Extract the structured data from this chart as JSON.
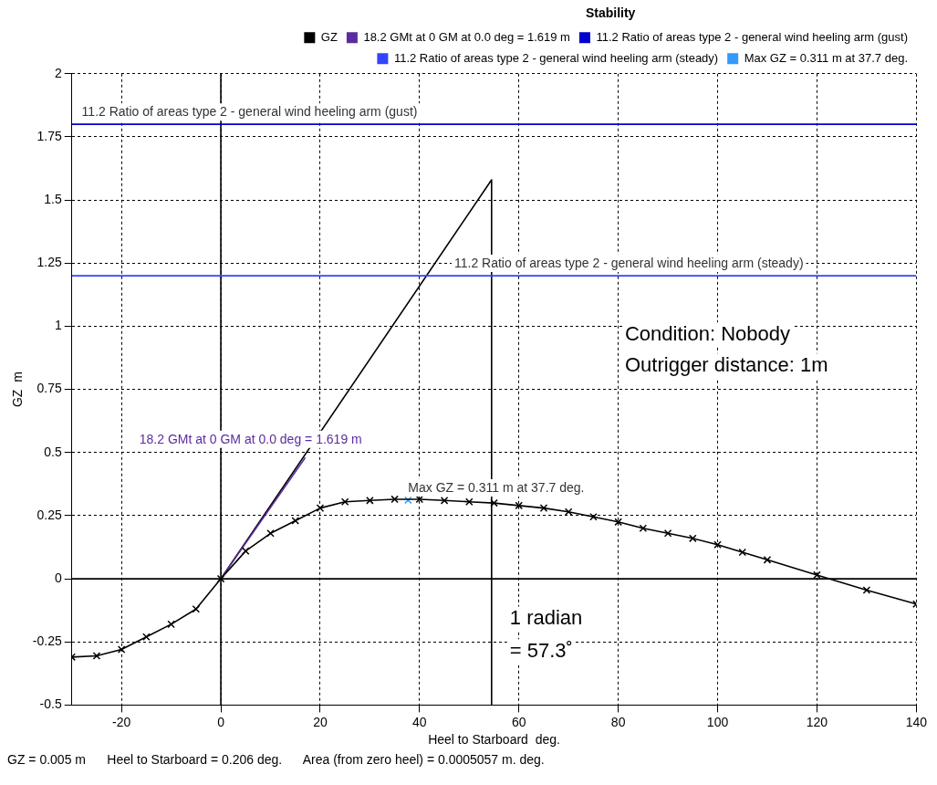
{
  "chart_data": {
    "type": "line",
    "xlabel": "Heel to Starboard  deg.",
    "ylabel": "GZ  m",
    "legend_title": "Stability",
    "legend": "top right",
    "grid": true,
    "xlim": [
      -30,
      140
    ],
    "xticks": [
      -20,
      0,
      20,
      40,
      60,
      80,
      100,
      120,
      140
    ],
    "ylim": [
      -0.5,
      2
    ],
    "yticks": [
      -0.5,
      -0.25,
      0,
      0.25,
      0.5,
      0.75,
      1,
      1.25,
      1.5,
      1.75,
      2
    ],
    "series": [
      {
        "name": "GZ",
        "color": "#000000",
        "marker": "cross",
        "x": [
          -30,
          -25,
          -20,
          -15,
          -10,
          -5,
          0,
          5,
          10,
          15,
          20,
          25,
          30,
          35,
          40,
          45,
          50,
          55,
          60,
          65,
          70,
          75,
          80,
          85,
          90,
          95,
          100,
          105,
          110,
          120,
          130,
          140
        ],
        "values": [
          -0.31,
          -0.305,
          -0.28,
          -0.23,
          -0.18,
          -0.12,
          0,
          0.11,
          0.18,
          0.23,
          0.28,
          0.305,
          0.31,
          0.315,
          0.315,
          0.31,
          0.305,
          0.3,
          0.29,
          0.28,
          0.265,
          0.245,
          0.225,
          0.2,
          0.18,
          0.16,
          0.135,
          0.105,
          0.075,
          0.015,
          -0.045,
          -0.1
        ]
      },
      {
        "name": "18.2 GMt at 0 GM at 0.0 deg = 1.619 m",
        "color": "#5b2c9f",
        "x": [
          0,
          17
        ],
        "values": [
          0,
          0.48
        ]
      },
      {
        "name": "11.2 Ratio of areas type 2 - general wind heeling arm (gust)",
        "color": "#0000cc",
        "x": [
          -30,
          140
        ],
        "values": [
          1.8,
          1.8
        ]
      },
      {
        "name": "11.2 Ratio of areas type 2 - general wind heeling arm (steady)",
        "color": "#3344ff",
        "x": [
          -30,
          140
        ],
        "values": [
          1.2,
          1.2
        ]
      },
      {
        "name": "Max GZ = 0.311 m at 37.7 deg.",
        "type": "scatter",
        "marker": "cross",
        "color": "#3399ff",
        "x": [
          37.7
        ],
        "values": [
          0.311
        ]
      },
      {
        "color": "#000000",
        "x": [
          0,
          54.5,
          54.5
        ],
        "values": [
          0,
          1.58,
          -0.5
        ]
      },
      {
        "color": "#000000",
        "x": [
          0,
          0
        ],
        "values": [
          -0.5,
          2
        ]
      },
      {
        "color": "#000000",
        "x": [
          -30,
          140
        ],
        "values": [
          0,
          0
        ]
      }
    ],
    "annotations": [
      {
        "text": "11.2 Ratio of areas type 2 - general wind heeling arm (gust)",
        "x": -28,
        "y": 1.8
      },
      {
        "text": "11.2 Ratio of areas type 2 - general wind heeling arm (steady)",
        "x": 47,
        "y": 1.2
      },
      "18.2 GMt at 0 GM at 0.0 deg = 1.619 m",
      {
        "text": "Max GZ = 0.311 m at 37.7 deg.",
        "x": 37.7,
        "y": 0.311
      },
      "Condition: Nobody",
      "Outrigger distance: 1m",
      {
        "text": "1 radian",
        "x": 54.5,
        "y": -0.2
      },
      {
        "text": "= 57.3˚",
        "x": 54.5,
        "y": -0.33
      },
      "GZ = 0.005 m      Heel to Starboard = 0.206 deg.      Area (from zero heel) = 0.0005057 m. deg."
    ]
  }
}
